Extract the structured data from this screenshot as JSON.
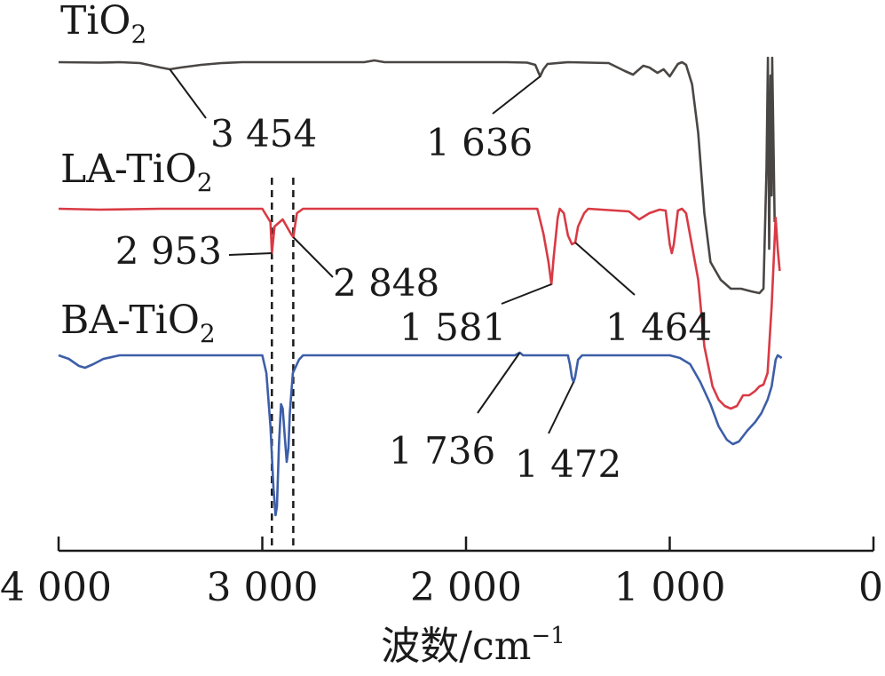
{
  "chart_data": {
    "type": "line",
    "xlabel": "波数/cm",
    "xlabel_sup": "−1",
    "xlim": [
      4000,
      0
    ],
    "x_reversed": true,
    "x_ticks": [
      {
        "value": 4000,
        "label": "4 000"
      },
      {
        "value": 3000,
        "label": "3 000"
      },
      {
        "value": 2000,
        "label": "2 000"
      },
      {
        "value": 1000,
        "label": "1 000"
      },
      {
        "value": 0,
        "label": "0"
      }
    ],
    "ylabel": "",
    "series": [
      {
        "name": "TiO",
        "name_sub": "2",
        "color": "#4a4644",
        "points": [
          [
            4000,
            0
          ],
          [
            3800,
            0.5
          ],
          [
            3700,
            0
          ],
          [
            3600,
            1
          ],
          [
            3500,
            6
          ],
          [
            3454,
            8
          ],
          [
            3400,
            6
          ],
          [
            3300,
            3
          ],
          [
            3200,
            1
          ],
          [
            3100,
            0
          ],
          [
            2500,
            0
          ],
          [
            2450,
            -2
          ],
          [
            2400,
            0
          ],
          [
            1800,
            0
          ],
          [
            1700,
            0.5
          ],
          [
            1660,
            3
          ],
          [
            1636,
            16
          ],
          [
            1620,
            8
          ],
          [
            1600,
            2
          ],
          [
            1500,
            0
          ],
          [
            1300,
            1
          ],
          [
            1220,
            10
          ],
          [
            1180,
            14
          ],
          [
            1130,
            4
          ],
          [
            1100,
            6
          ],
          [
            1060,
            12
          ],
          [
            1030,
            8
          ],
          [
            1000,
            16
          ],
          [
            960,
            2
          ],
          [
            940,
            0
          ],
          [
            920,
            3
          ],
          [
            890,
            25
          ],
          [
            860,
            80
          ],
          [
            830,
            170
          ],
          [
            800,
            225
          ],
          [
            750,
            245
          ],
          [
            700,
            255
          ],
          [
            650,
            255
          ],
          [
            600,
            258
          ],
          [
            560,
            260
          ],
          [
            540,
            255
          ],
          [
            525,
            120
          ],
          [
            518,
            -5
          ],
          [
            512,
            210
          ],
          [
            505,
            15
          ],
          [
            500,
            150
          ],
          [
            497,
            -5
          ],
          [
            490,
            100
          ],
          [
            485,
            180
          ]
        ]
      },
      {
        "name": "LA-TiO",
        "name_sub": "2",
        "color": "#d93a44",
        "points": [
          [
            4000,
            0
          ],
          [
            3800,
            1
          ],
          [
            3500,
            0
          ],
          [
            3000,
            0
          ],
          [
            2960,
            15
          ],
          [
            2953,
            50
          ],
          [
            2940,
            20
          ],
          [
            2900,
            12
          ],
          [
            2860,
            28
          ],
          [
            2848,
            32
          ],
          [
            2830,
            5
          ],
          [
            2800,
            0
          ],
          [
            1700,
            0
          ],
          [
            1650,
            0
          ],
          [
            1620,
            28
          ],
          [
            1595,
            60
          ],
          [
            1581,
            85
          ],
          [
            1570,
            55
          ],
          [
            1550,
            10
          ],
          [
            1540,
            0
          ],
          [
            1520,
            5
          ],
          [
            1500,
            30
          ],
          [
            1480,
            40
          ],
          [
            1464,
            38
          ],
          [
            1450,
            20
          ],
          [
            1420,
            5
          ],
          [
            1400,
            0
          ],
          [
            1200,
            3
          ],
          [
            1150,
            12
          ],
          [
            1100,
            5
          ],
          [
            1050,
            1
          ],
          [
            1020,
            2
          ],
          [
            1000,
            40
          ],
          [
            990,
            50
          ],
          [
            980,
            40
          ],
          [
            960,
            2
          ],
          [
            940,
            0
          ],
          [
            920,
            5
          ],
          [
            860,
            80
          ],
          [
            830,
            155
          ],
          [
            790,
            200
          ],
          [
            760,
            215
          ],
          [
            730,
            222
          ],
          [
            700,
            225
          ],
          [
            670,
            222
          ],
          [
            640,
            210
          ],
          [
            610,
            210
          ],
          [
            580,
            205
          ],
          [
            560,
            200
          ],
          [
            540,
            198
          ],
          [
            520,
            185
          ],
          [
            500,
            110
          ],
          [
            480,
            10
          ],
          [
            470,
            45
          ],
          [
            460,
            70
          ]
        ]
      },
      {
        "name": "BA-TiO",
        "name_sub": "2",
        "color": "#3d5ea8",
        "points": [
          [
            4000,
            0
          ],
          [
            3950,
            4
          ],
          [
            3900,
            12
          ],
          [
            3870,
            14
          ],
          [
            3830,
            10
          ],
          [
            3780,
            4
          ],
          [
            3700,
            0
          ],
          [
            3500,
            0
          ],
          [
            3000,
            0
          ],
          [
            2980,
            20
          ],
          [
            2960,
            80
          ],
          [
            2945,
            150
          ],
          [
            2935,
            180
          ],
          [
            2928,
            170
          ],
          [
            2918,
            100
          ],
          [
            2908,
            55
          ],
          [
            2900,
            60
          ],
          [
            2890,
            90
          ],
          [
            2880,
            120
          ],
          [
            2872,
            105
          ],
          [
            2865,
            65
          ],
          [
            2850,
            20
          ],
          [
            2820,
            5
          ],
          [
            2800,
            0
          ],
          [
            1760,
            0
          ],
          [
            1736,
            -3
          ],
          [
            1720,
            0
          ],
          [
            1700,
            0
          ],
          [
            1500,
            0
          ],
          [
            1490,
            10
          ],
          [
            1480,
            25
          ],
          [
            1472,
            30
          ],
          [
            1465,
            25
          ],
          [
            1450,
            5
          ],
          [
            1430,
            0
          ],
          [
            1000,
            0
          ],
          [
            950,
            3
          ],
          [
            900,
            10
          ],
          [
            850,
            30
          ],
          [
            800,
            55
          ],
          [
            760,
            80
          ],
          [
            720,
            95
          ],
          [
            690,
            100
          ],
          [
            660,
            97
          ],
          [
            620,
            85
          ],
          [
            580,
            75
          ],
          [
            550,
            65
          ],
          [
            520,
            50
          ],
          [
            500,
            35
          ],
          [
            480,
            5
          ],
          [
            470,
            0
          ],
          [
            450,
            3
          ]
        ]
      }
    ],
    "annotations": [
      {
        "label": "3 454",
        "series": 0,
        "x": 3454
      },
      {
        "label": "1 636",
        "series": 0,
        "x": 1636
      },
      {
        "label": "2 953",
        "series": 1,
        "x": 2953
      },
      {
        "label": "2 848",
        "series": 1,
        "x": 2848
      },
      {
        "label": "1 581",
        "series": 1,
        "x": 1581
      },
      {
        "label": "1 464",
        "series": 1,
        "x": 1464
      },
      {
        "label": "1 736",
        "series": 2,
        "x": 1736
      },
      {
        "label": "1 472",
        "series": 2,
        "x": 1472
      }
    ],
    "reference_lines": [
      2953,
      2848
    ],
    "legend": "series names placed above-left of each trace",
    "grid": false
  }
}
